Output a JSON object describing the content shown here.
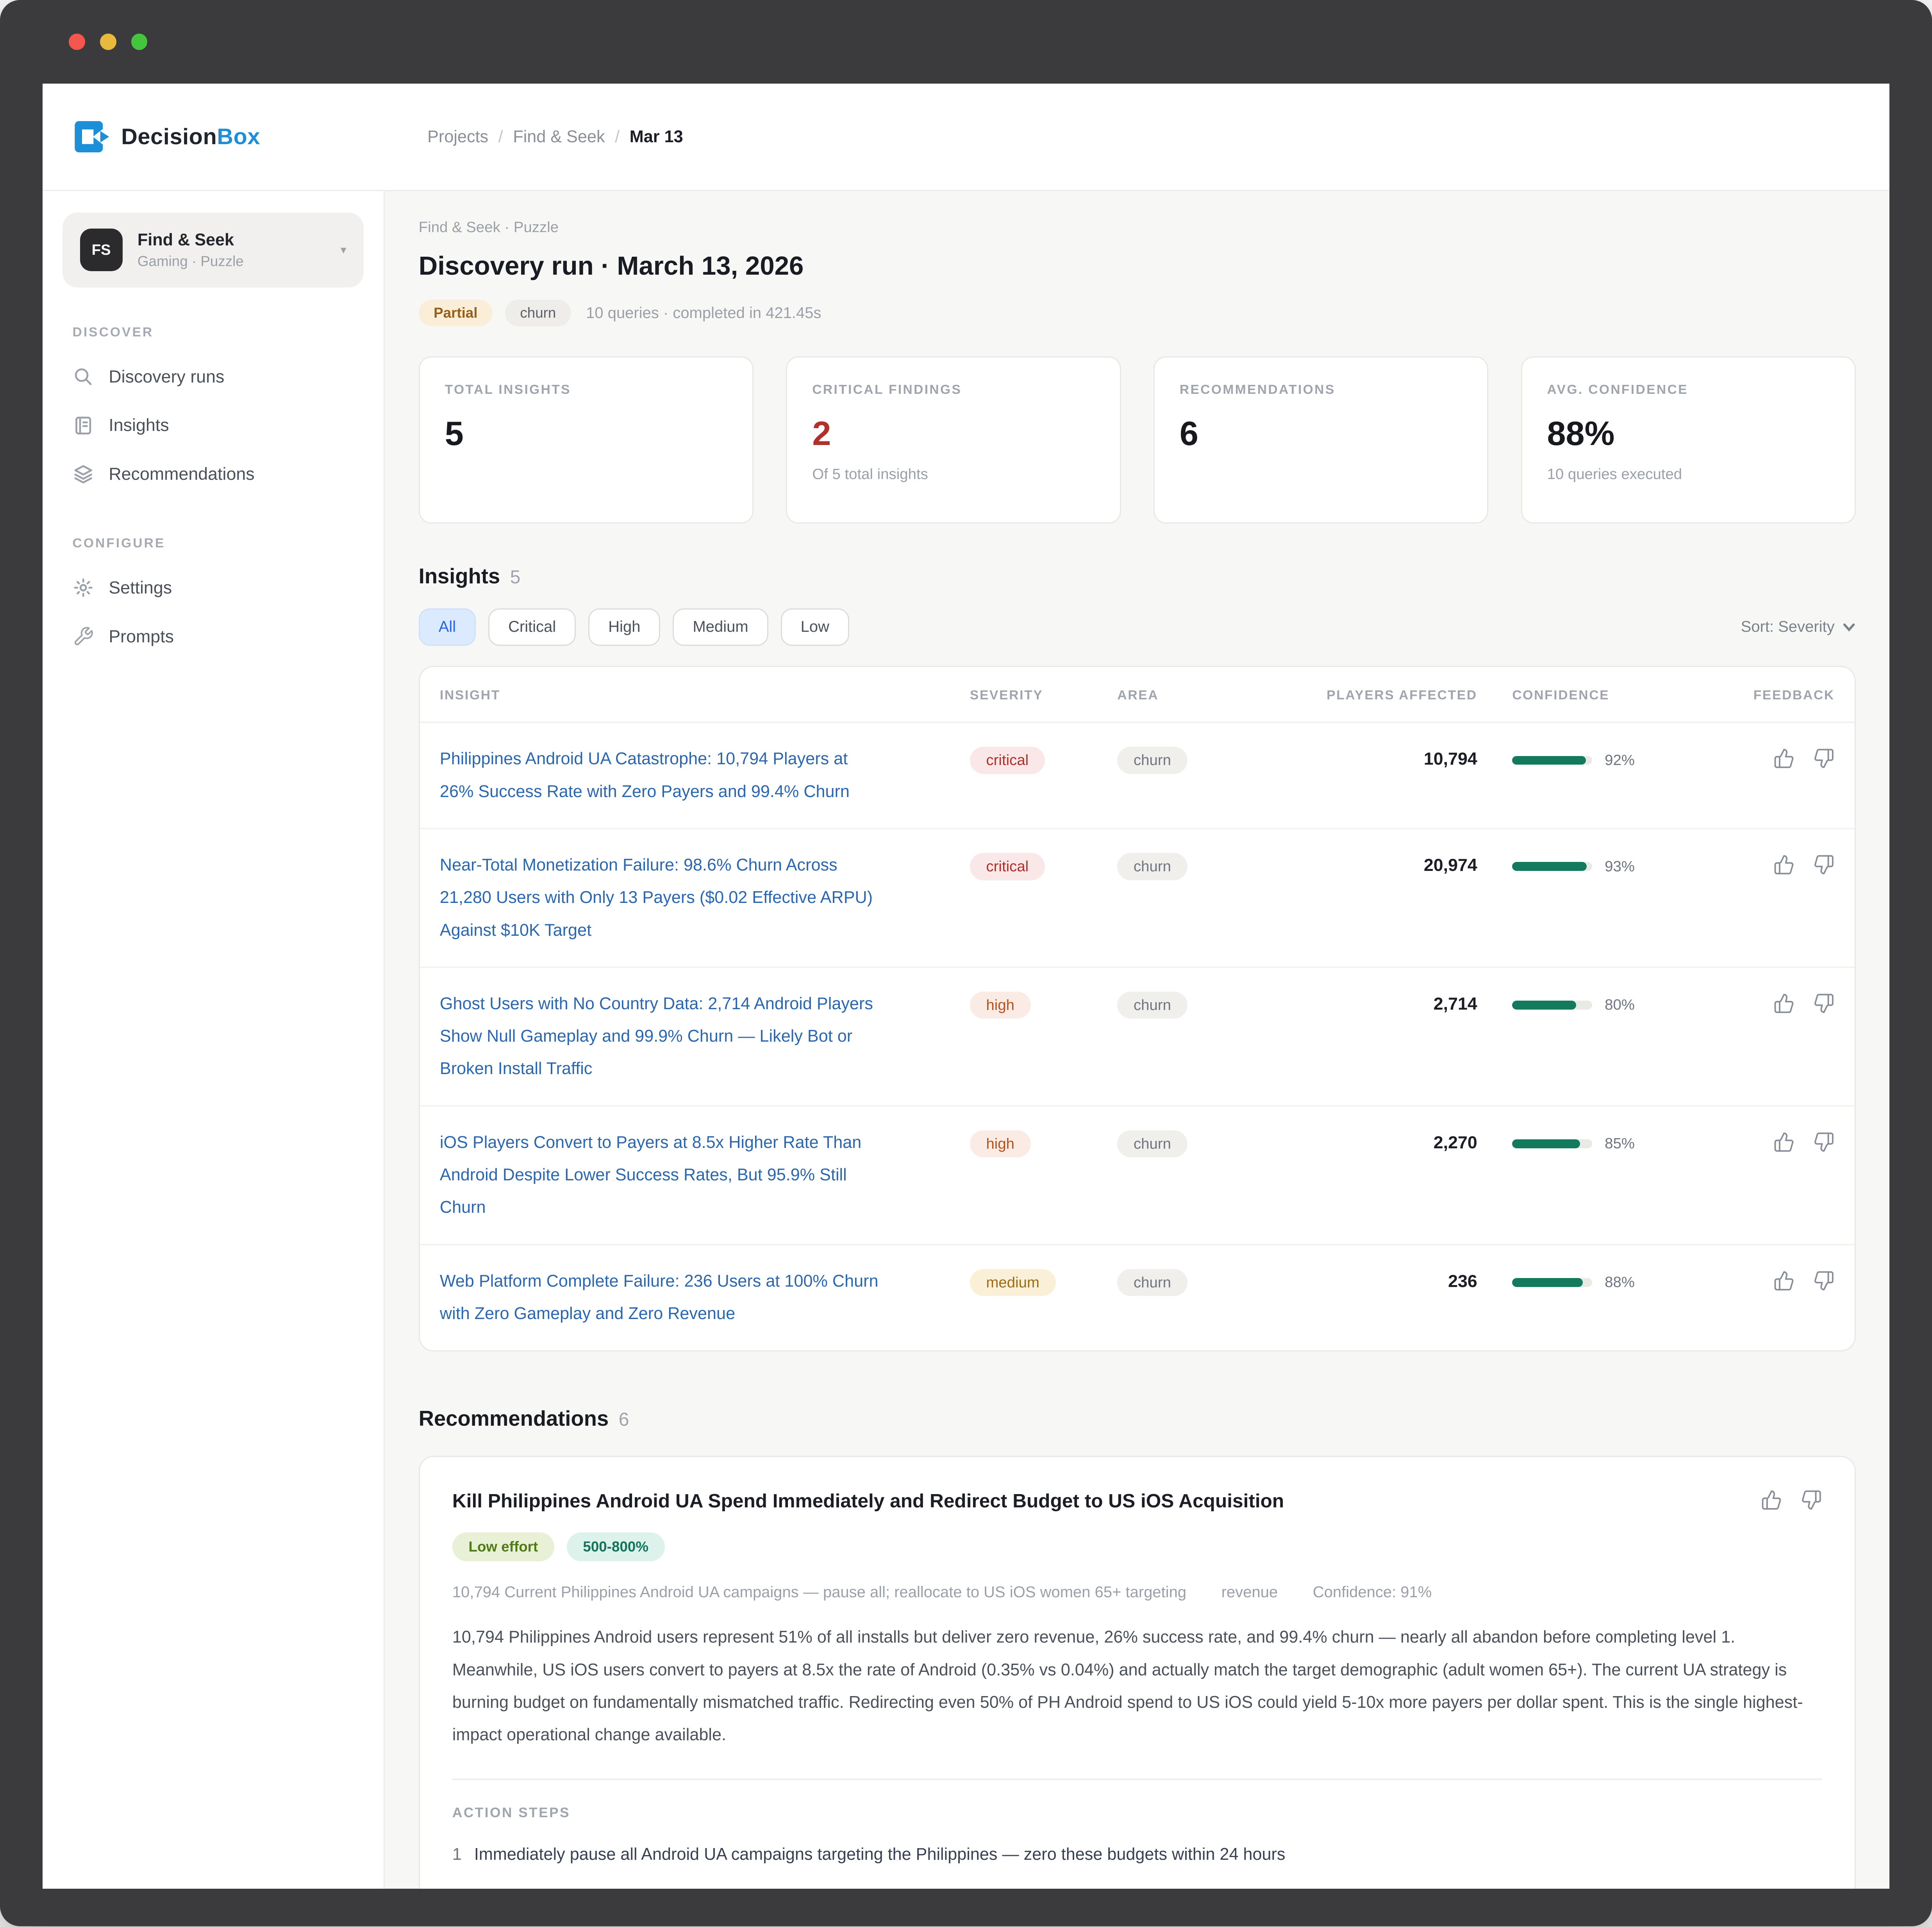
{
  "brand": {
    "name_dark": "Decision",
    "name_accent": "Box",
    "accent_color": "#1d8fd8"
  },
  "sidebar": {
    "project": {
      "initials": "FS",
      "name": "Find & Seek",
      "subtitle": "Gaming · Puzzle",
      "caret": "▾"
    },
    "sections": [
      {
        "label": "DISCOVER",
        "items": [
          {
            "label": "Discovery runs",
            "icon": "search-icon"
          },
          {
            "label": "Insights",
            "icon": "book-icon"
          },
          {
            "label": "Recommendations",
            "icon": "layers-icon"
          }
        ]
      },
      {
        "label": "CONFIGURE",
        "items": [
          {
            "label": "Settings",
            "icon": "gear-icon"
          },
          {
            "label": "Prompts",
            "icon": "wrench-icon"
          }
        ]
      }
    ]
  },
  "breadcrumb": {
    "items": [
      "Projects",
      "Find & Seek",
      "Mar 13"
    ],
    "separator": "/"
  },
  "header": {
    "eyebrow": "Find & Seek · Puzzle",
    "title": "Discovery run · March 13, 2026",
    "status_badge": "Partial",
    "tag_badge": "churn",
    "meta": "10 queries · completed in 421.45s"
  },
  "stats": [
    {
      "label": "TOTAL INSIGHTS",
      "value": "5",
      "sub": ""
    },
    {
      "label": "CRITICAL FINDINGS",
      "value": "2",
      "sub": "Of 5 total insights",
      "value_color": "#b0302a"
    },
    {
      "label": "RECOMMENDATIONS",
      "value": "6",
      "sub": ""
    },
    {
      "label": "AVG. CONFIDENCE",
      "value": "88%",
      "sub": "10 queries executed"
    }
  ],
  "insights": {
    "heading": "Insights",
    "count": "5",
    "filters": [
      "All",
      "Critical",
      "High",
      "Medium",
      "Low"
    ],
    "active_filter": "All",
    "sort_label": "Sort: Severity",
    "columns": [
      "INSIGHT",
      "SEVERITY",
      "AREA",
      "PLAYERS AFFECTED",
      "CONFIDENCE",
      "FEEDBACK"
    ],
    "confidence_bar_color": "#147a5e",
    "rows": [
      {
        "title": "Philippines Android UA Catastrophe: 10,794 Players at 26% Success Rate with Zero Payers and 99.4% Churn",
        "severity": "critical",
        "area": "churn",
        "players": "10,794",
        "confidence": 92,
        "confidence_label": "92%"
      },
      {
        "title": "Near-Total Monetization Failure: 98.6% Churn Across 21,280 Users with Only 13 Payers ($0.02 Effective ARPU) Against $10K Target",
        "severity": "critical",
        "area": "churn",
        "players": "20,974",
        "confidence": 93,
        "confidence_label": "93%"
      },
      {
        "title": "Ghost Users with No Country Data: 2,714 Android Players Show Null Gameplay and 99.9% Churn — Likely Bot or Broken Install Traffic",
        "severity": "high",
        "area": "churn",
        "players": "2,714",
        "confidence": 80,
        "confidence_label": "80%"
      },
      {
        "title": "iOS Players Convert to Payers at 8.5x Higher Rate Than Android Despite Lower Success Rates, But 95.9% Still Churn",
        "severity": "high",
        "area": "churn",
        "players": "2,270",
        "confidence": 85,
        "confidence_label": "85%"
      },
      {
        "title": "Web Platform Complete Failure: 236 Users at 100% Churn with Zero Gameplay and Zero Revenue",
        "severity": "medium",
        "area": "churn",
        "players": "236",
        "confidence": 88,
        "confidence_label": "88%"
      }
    ]
  },
  "recommendations": {
    "heading": "Recommendations",
    "count": "6",
    "cards": [
      {
        "title": "Kill Philippines Android UA Spend Immediately and Redirect Budget to US iOS Acquisition",
        "badges": [
          {
            "label": "Low effort",
            "type": "effort"
          },
          {
            "label": "500-800%",
            "type": "roi"
          }
        ],
        "meta_primary": "10,794 Current Philippines Android UA campaigns — pause all; reallocate to US iOS women 65+ targeting",
        "meta_area": "revenue",
        "meta_confidence": "Confidence: 91%",
        "body": "10,794 Philippines Android users represent 51% of all installs but deliver zero revenue, 26% success rate, and 99.4% churn — nearly all abandon before completing level 1. Meanwhile, US iOS users convert to payers at 8.5x the rate of Android (0.35% vs 0.04%) and actually match the target demographic (adult women 65+). The current UA strategy is burning budget on fundamentally mismatched traffic. Redirecting even 50% of PH Android spend to US iOS could yield 5-10x more payers per dollar spent. This is the single highest-impact operational change available.",
        "action_steps_label": "ACTION STEPS",
        "action_steps": [
          {
            "num": "1",
            "text": "Immediately pause all Android UA campaigns targeting the Philippines — zero these budgets within 24 hours"
          }
        ]
      }
    ]
  }
}
